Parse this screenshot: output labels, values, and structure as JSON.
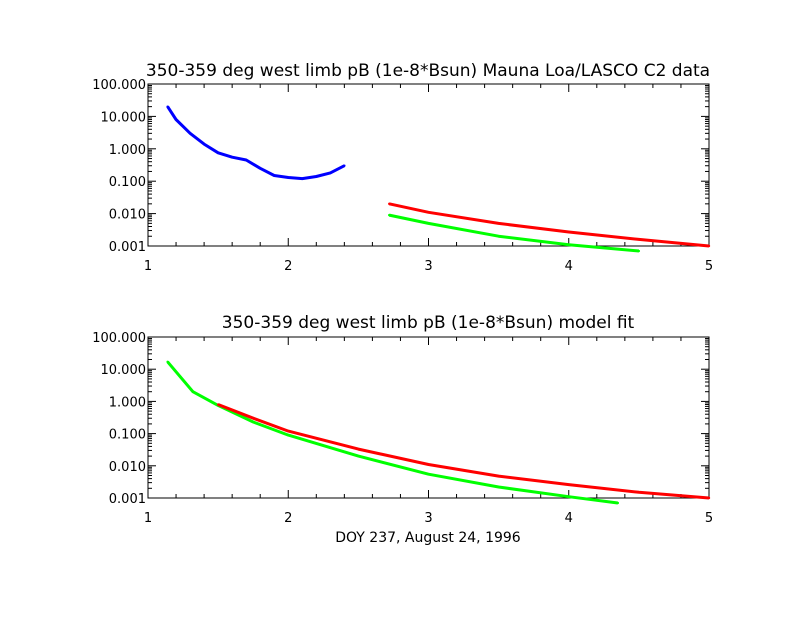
{
  "colors": {
    "background": "#ffffff",
    "axes": "#000000",
    "blue_series": "#0000ff",
    "red_series": "#ff0000",
    "green_series": "#00ff00"
  },
  "chart_data": [
    {
      "type": "line",
      "title": "350-359 deg west limb pB (1e-8*Bsun) Mauna Loa/LASCO C2 data",
      "xlabel": "",
      "ylabel": "",
      "xlim": [
        1,
        5
      ],
      "ylim": [
        0.001,
        100
      ],
      "yscale": "log",
      "grid": false,
      "xtick_labels": [
        "1",
        "2",
        "3",
        "4",
        "5"
      ],
      "ytick_labels": [
        "0.001",
        "0.010",
        "0.100",
        "1.000",
        "10.000",
        "100.000"
      ],
      "series": [
        {
          "color": "blue",
          "x": [
            1.14,
            1.2,
            1.3,
            1.4,
            1.5,
            1.6,
            1.7,
            1.8,
            1.9,
            2.0,
            2.1,
            2.2,
            2.3,
            2.4
          ],
          "values": [
            20,
            8,
            3,
            1.4,
            0.75,
            0.55,
            0.45,
            0.25,
            0.15,
            0.13,
            0.12,
            0.14,
            0.18,
            0.3
          ]
        },
        {
          "color": "red",
          "x": [
            2.72,
            3.0,
            3.5,
            4.0,
            4.5,
            5.0
          ],
          "values": [
            0.02,
            0.011,
            0.005,
            0.0027,
            0.0016,
            0.001
          ]
        },
        {
          "color": "green",
          "x": [
            2.72,
            3.0,
            3.5,
            4.0,
            4.5
          ],
          "values": [
            0.009,
            0.005,
            0.002,
            0.0011,
            0.0007
          ]
        }
      ]
    },
    {
      "type": "line",
      "title": "350-359 deg west limb pB (1e-8*Bsun) model fit",
      "xlabel": "DOY 237, August 24, 1996",
      "ylabel": "",
      "xlim": [
        1,
        5
      ],
      "ylim": [
        0.001,
        100
      ],
      "yscale": "log",
      "grid": false,
      "xtick_labels": [
        "1",
        "2",
        "3",
        "4",
        "5"
      ],
      "ytick_labels": [
        "0.001",
        "0.010",
        "0.100",
        "1.000",
        "10.000",
        "100.000"
      ],
      "series": [
        {
          "color": "green",
          "x": [
            1.14,
            1.32,
            1.5,
            1.75,
            2.0,
            2.5,
            3.0,
            3.5,
            4.0,
            4.35
          ],
          "values": [
            17,
            2.0,
            0.75,
            0.23,
            0.09,
            0.02,
            0.0055,
            0.0022,
            0.0011,
            0.0007
          ]
        },
        {
          "color": "red",
          "x": [
            1.5,
            1.75,
            2.0,
            2.5,
            3.0,
            3.5,
            4.0,
            4.5,
            5.0
          ],
          "values": [
            0.8,
            0.3,
            0.12,
            0.033,
            0.011,
            0.0048,
            0.0026,
            0.0015,
            0.001
          ]
        }
      ]
    }
  ]
}
